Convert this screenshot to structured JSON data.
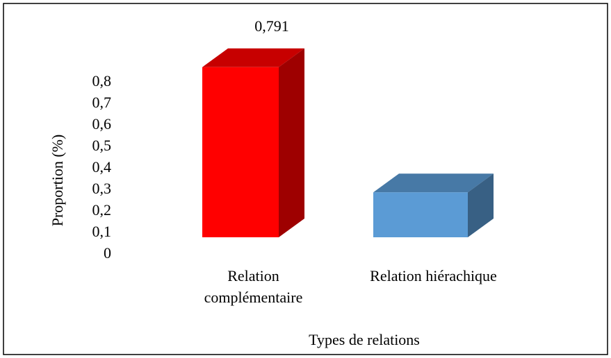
{
  "chart_data": {
    "type": "bar3d",
    "xlabel": "Types de relations",
    "ylabel": "Proportion (%)",
    "categories": [
      "Relation complémentaire",
      "Relation hiérachique"
    ],
    "values": [
      0.791,
      0.209
    ],
    "value_labels": [
      "0,791",
      null
    ],
    "colors": [
      "#ff0000",
      "#5b9bd5"
    ],
    "ylim": [
      0,
      0.8
    ],
    "yticks": [
      0,
      {
        "value": 0.1,
        "label": "0,1"
      },
      {
        "value": 0.2,
        "label": "0,2"
      },
      {
        "value": 0.3,
        "label": "0,3"
      },
      {
        "value": 0.4,
        "label": "0,4"
      },
      {
        "value": 0.5,
        "label": "0,5"
      },
      {
        "value": 0.6,
        "label": "0,6"
      },
      {
        "value": 0.7,
        "label": "0,7"
      },
      {
        "value": 0.8,
        "label": "0,8"
      }
    ],
    "grid": false
  }
}
